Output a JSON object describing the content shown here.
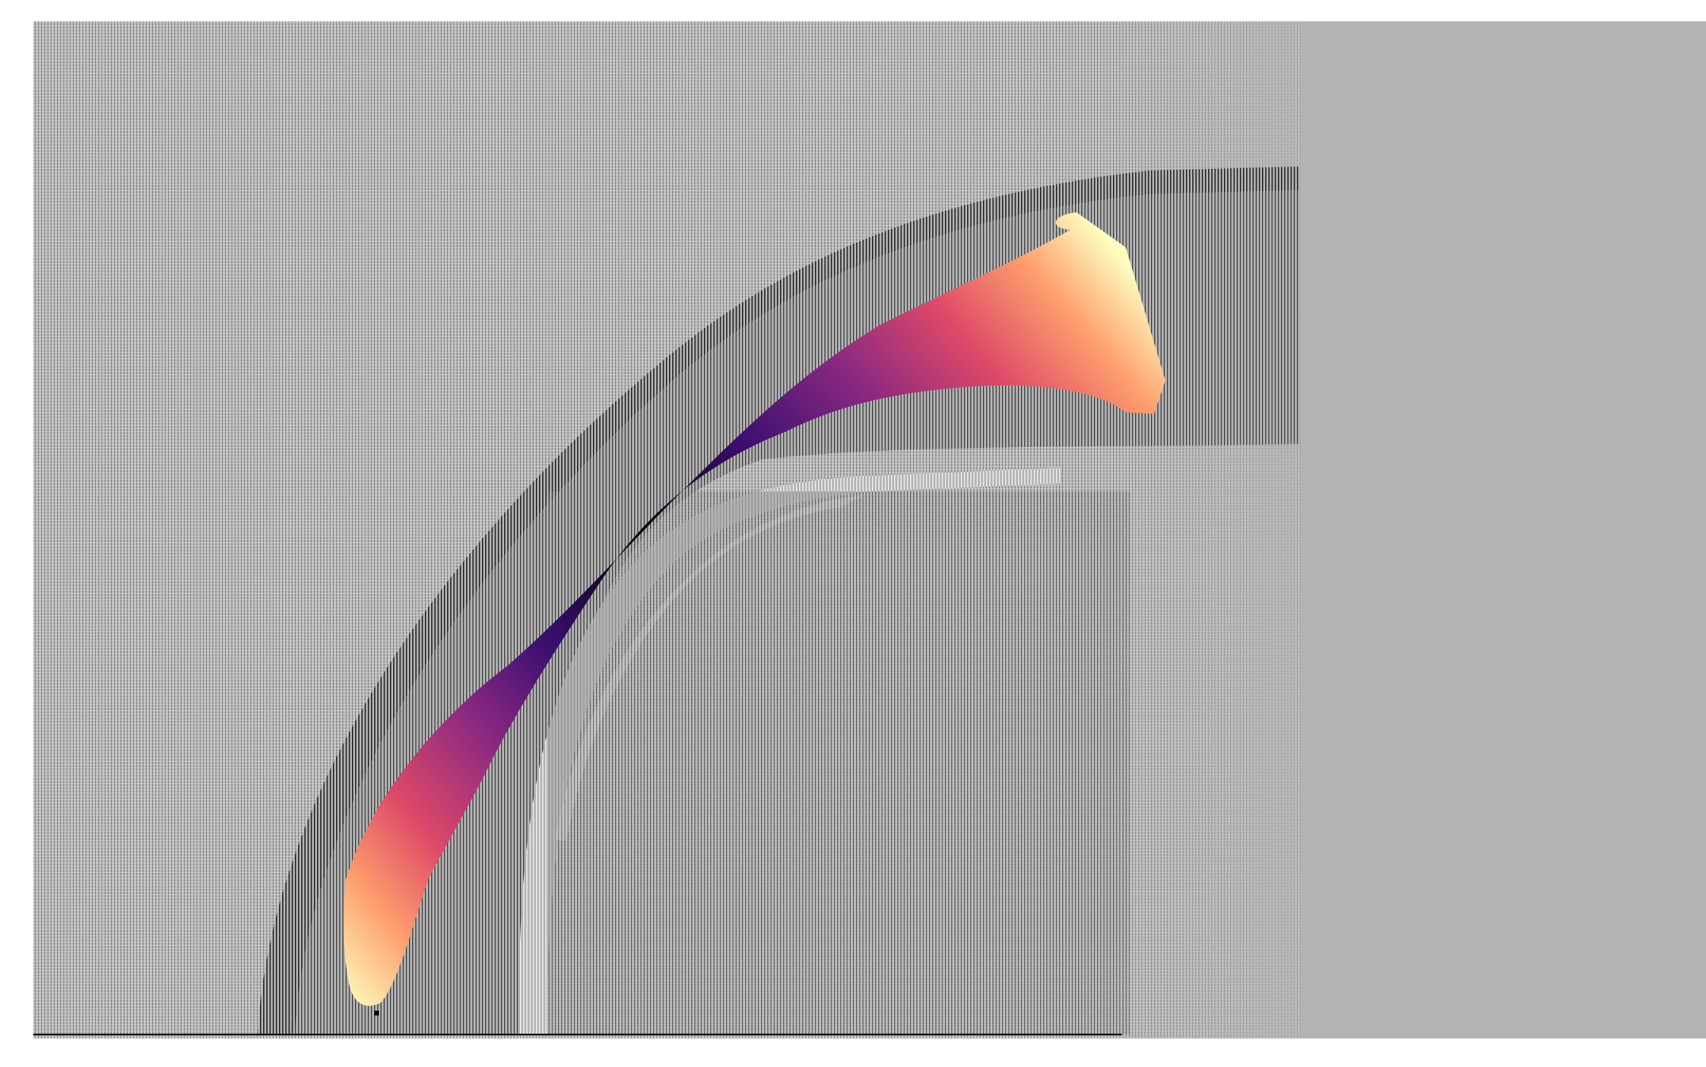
{
  "image": {
    "description_colors": {
      "page_background": "#ffffff",
      "plot_background": "#b3b3b3",
      "grid_dark": "#1a1a1a",
      "grid_light": "#ececec",
      "baseline": "#000000"
    },
    "colormap": "magma",
    "colormap_stops": [
      "#fcfdbf",
      "#fe9f6d",
      "#de4968",
      "#8c2981",
      "#3b0f70",
      "#000004"
    ]
  }
}
